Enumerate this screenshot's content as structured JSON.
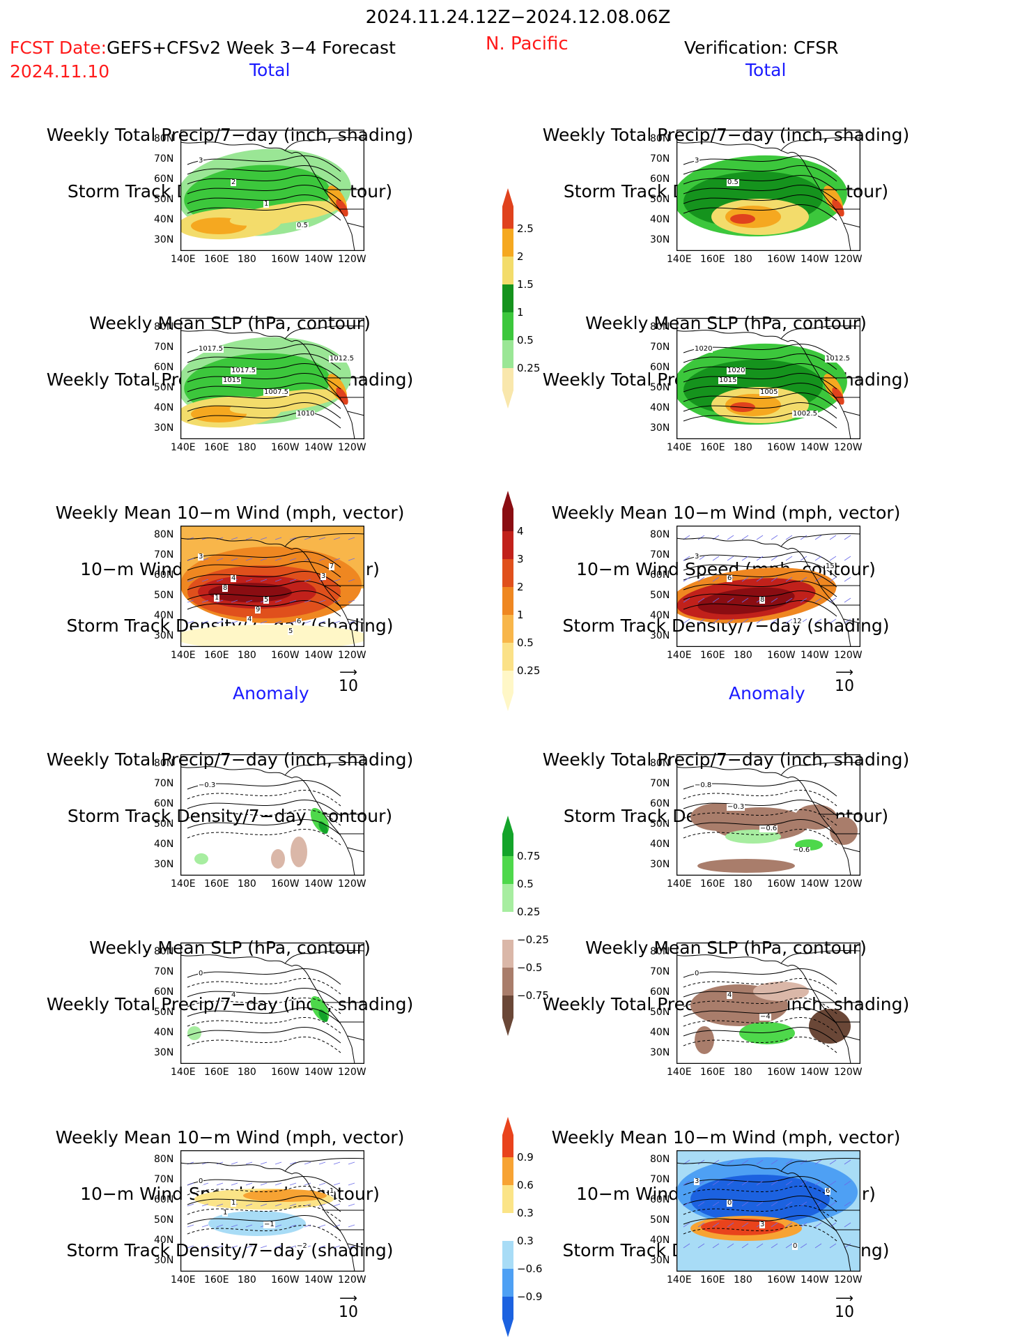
{
  "header": {
    "period": "2024.11.24.12Z−2024.12.08.06Z",
    "fcst_prefix": "FCST Date:",
    "fcst_title": "GEFS+CFSv2 Week 3−4 Forecast",
    "fcst_date": "2024.11.10",
    "region": "N. Pacific",
    "verification": "Verification: CFSR"
  },
  "sections": {
    "total": "Total",
    "anomaly": "Anomaly"
  },
  "panel_titles": {
    "precip_track": [
      "Weekly Total Precip/7−day (inch, shading)",
      "Storm Track Density/7−day (contour)"
    ],
    "slp_precip": [
      "Weekly Mean SLP (hPa, contour)",
      "Weekly Total Precip/7−day (inch, shading)"
    ],
    "wind_track": [
      "Weekly Mean 10−m Wind (mph, vector)",
      "10−m Wind Speed (mph, contour)",
      "Storm Track Density/7−day (shading)"
    ]
  },
  "axes": {
    "lat_ticks": [
      "80N",
      "70N",
      "60N",
      "50N",
      "40N",
      "30N"
    ],
    "lon_ticks": [
      "140E",
      "160E",
      "180",
      "160W",
      "140W",
      "120W"
    ]
  },
  "vector_reference": "10",
  "colorbars": {
    "precip_total": {
      "labels": [
        "2.5",
        "2",
        "1.5",
        "1",
        "0.5",
        "0.25"
      ],
      "colors": [
        "#f9e7ac",
        "#9ae695",
        "#3cc73c",
        "#15931d",
        "#f3dc6b",
        "#f5a820",
        "#e0421d"
      ]
    },
    "track_total": {
      "labels": [
        "4",
        "3",
        "2",
        "1",
        "0.5",
        "0.25"
      ],
      "colors": [
        "#fff7c7",
        "#fbe187",
        "#f8b64a",
        "#ef8721",
        "#e0501c",
        "#c1211b",
        "#8a0d12"
      ]
    },
    "precip_anom": {
      "labels": [
        "0.75",
        "0.5",
        "0.25",
        "−0.25",
        "−0.5",
        "−0.75"
      ],
      "colors": [
        "#6a4737",
        "#a97d6b",
        "#dab7a8",
        "#ffffff",
        "#a7eda0",
        "#4ed84b",
        "#14a42a"
      ]
    },
    "track_anom": {
      "labels": [
        "0.9",
        "0.6",
        "0.3",
        "0.3",
        "−0.6",
        "−0.9"
      ],
      "colors": [
        "#1c62e0",
        "#4ea0f4",
        "#a8dcf6",
        "#ffffff",
        "#fbe487",
        "#f7a333",
        "#e9431c"
      ]
    }
  },
  "panel_labels": {
    "fc_precip_total": [
      "3",
      "2",
      "1",
      "0.5"
    ],
    "fc_slp_total": [
      "1017.5",
      "1017.5",
      "1007.5",
      "1010",
      "1012.5",
      "1015"
    ],
    "fc_wind_total": [
      "3",
      "4",
      "5",
      "6",
      "7",
      "8",
      "9",
      "5",
      "3",
      "1",
      "4"
    ],
    "obs_precip_total": [
      "3",
      "0.5"
    ],
    "obs_slp_total": [
      "1020",
      "1020",
      "1005",
      "1002.5",
      "1012.5",
      "1015"
    ],
    "obs_wind_total": [
      "3",
      "6",
      "8",
      "12",
      "15"
    ],
    "fc_precip_anom": [
      "−0.3"
    ],
    "fc_slp_anom": [
      "0",
      "4"
    ],
    "fc_wind_anom": [
      "0",
      "1",
      "−1",
      "−2",
      "1",
      "1"
    ],
    "obs_precip_anom": [
      "−0.8",
      "−0.3",
      "−0.6",
      "−0.6"
    ],
    "obs_slp_anom": [
      "0",
      "4",
      "−4"
    ],
    "obs_wind_anom": [
      "3",
      "0",
      "3",
      "0",
      "6"
    ]
  },
  "colors": {
    "red_text": "#ff1a1a",
    "blue_text": "#1a1aff"
  }
}
